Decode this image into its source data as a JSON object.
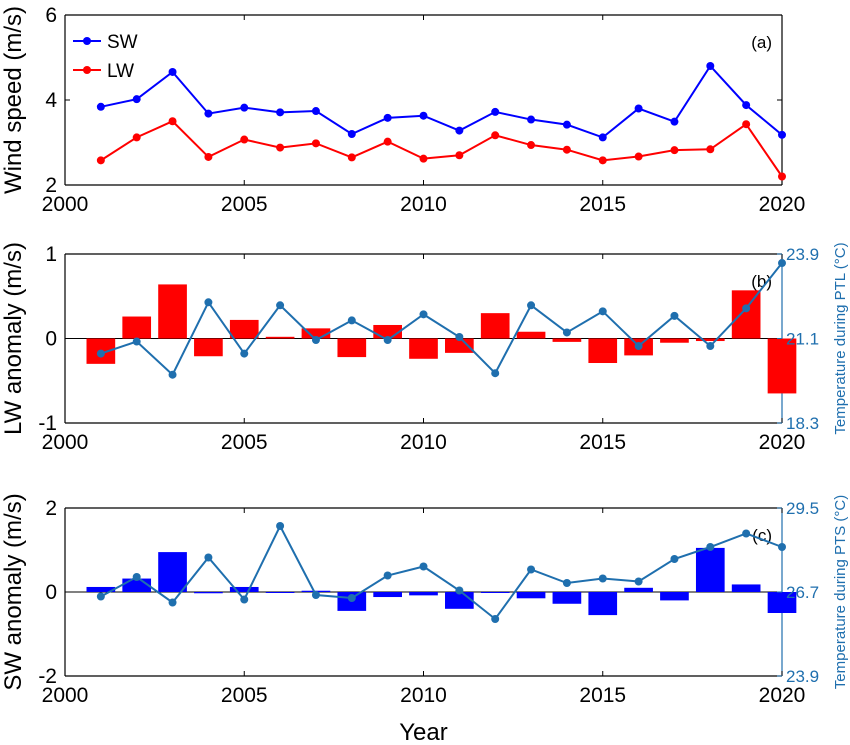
{
  "colors": {
    "sw": "#0000ff",
    "lw": "#ff0000",
    "temperature": "#1f6fae",
    "axes": "#000000"
  },
  "chart_data": [
    {
      "type": "line",
      "panel_label": "(a)",
      "ylabel": "Wind speed (m/s)",
      "xlabel": "",
      "ylim": [
        2,
        6
      ],
      "yticks": [
        "2",
        "4",
        "6"
      ],
      "xlim": [
        2000,
        2020
      ],
      "xticks": [
        "2000",
        "2005",
        "2010",
        "2015",
        "2020"
      ],
      "legend_position": "top-left",
      "x": [
        2001,
        2002,
        2003,
        2004,
        2005,
        2006,
        2007,
        2008,
        2009,
        2010,
        2011,
        2012,
        2013,
        2014,
        2015,
        2016,
        2017,
        2018,
        2019,
        2020
      ],
      "series": [
        {
          "name": "SW",
          "color": "#0000ff",
          "values": [
            3.84,
            4.02,
            4.66,
            3.68,
            3.82,
            3.71,
            3.74,
            3.2,
            3.58,
            3.63,
            3.28,
            3.72,
            3.54,
            3.42,
            3.12,
            3.8,
            3.49,
            4.8,
            3.88,
            3.18
          ]
        },
        {
          "name": "LW",
          "color": "#ff0000",
          "values": [
            2.58,
            3.12,
            3.5,
            2.66,
            3.07,
            2.88,
            2.98,
            2.65,
            3.02,
            2.62,
            2.7,
            3.17,
            2.94,
            2.83,
            2.58,
            2.67,
            2.82,
            2.84,
            3.43,
            2.2
          ]
        }
      ]
    },
    {
      "type": "bar",
      "panel_label": "(b)",
      "ylabel": "LW anomaly (m/s)",
      "xlabel": "",
      "ylim": [
        -1,
        1
      ],
      "yticks": [
        "-1",
        "0",
        "1"
      ],
      "xlim": [
        2000,
        2020
      ],
      "xticks": [
        "2000",
        "2005",
        "2010",
        "2015",
        "2020"
      ],
      "x": [
        2001,
        2002,
        2003,
        2004,
        2005,
        2006,
        2007,
        2008,
        2009,
        2010,
        2011,
        2012,
        2013,
        2014,
        2015,
        2016,
        2017,
        2018,
        2019,
        2020
      ],
      "bars": {
        "color": "#ff0000",
        "values": [
          -0.3,
          0.26,
          0.64,
          -0.21,
          0.22,
          0.02,
          0.12,
          -0.22,
          0.16,
          -0.24,
          -0.17,
          0.3,
          0.08,
          -0.04,
          -0.29,
          -0.2,
          -0.05,
          -0.03,
          0.57,
          -0.65
        ]
      },
      "right_axis": {
        "label": "Temperature during PTL (°C)",
        "ylim": [
          18.3,
          23.9
        ],
        "yticks": [
          "18.3",
          "21.1",
          "23.9"
        ],
        "color": "#1f6fae",
        "values": [
          20.6,
          21.0,
          19.9,
          22.3,
          20.6,
          22.2,
          21.05,
          21.7,
          21.05,
          21.9,
          21.15,
          19.95,
          22.2,
          21.3,
          22.0,
          20.85,
          21.85,
          20.85,
          22.1,
          23.6
        ]
      }
    },
    {
      "type": "bar",
      "panel_label": "(c)",
      "ylabel": "SW anomaly (m/s)",
      "xlabel": "Year",
      "ylim": [
        -2,
        2
      ],
      "yticks": [
        "-2",
        "0",
        "2"
      ],
      "xlim": [
        2000,
        2020
      ],
      "xticks": [
        "2000",
        "2005",
        "2010",
        "2015",
        "2020"
      ],
      "x": [
        2001,
        2002,
        2003,
        2004,
        2005,
        2006,
        2007,
        2008,
        2009,
        2010,
        2011,
        2012,
        2013,
        2014,
        2015,
        2016,
        2017,
        2018,
        2019,
        2020
      ],
      "bars": {
        "color": "#0000ff",
        "values": [
          0.12,
          0.32,
          0.95,
          -0.03,
          0.12,
          0.0,
          0.03,
          -0.45,
          -0.12,
          -0.08,
          -0.4,
          0.0,
          -0.15,
          -0.28,
          -0.55,
          0.1,
          -0.2,
          1.05,
          0.18,
          -0.5
        ]
      },
      "right_axis": {
        "label": "Temperature during PTS (°C)",
        "ylim": [
          23.9,
          29.5
        ],
        "yticks": [
          "23.9",
          "26.7",
          "29.5"
        ],
        "color": "#1f6fae",
        "values": [
          26.55,
          27.2,
          26.35,
          27.85,
          26.45,
          28.9,
          26.6,
          26.5,
          27.25,
          27.55,
          26.75,
          25.8,
          27.45,
          27.0,
          27.15,
          27.05,
          27.8,
          28.2,
          28.65,
          28.2
        ]
      }
    }
  ]
}
